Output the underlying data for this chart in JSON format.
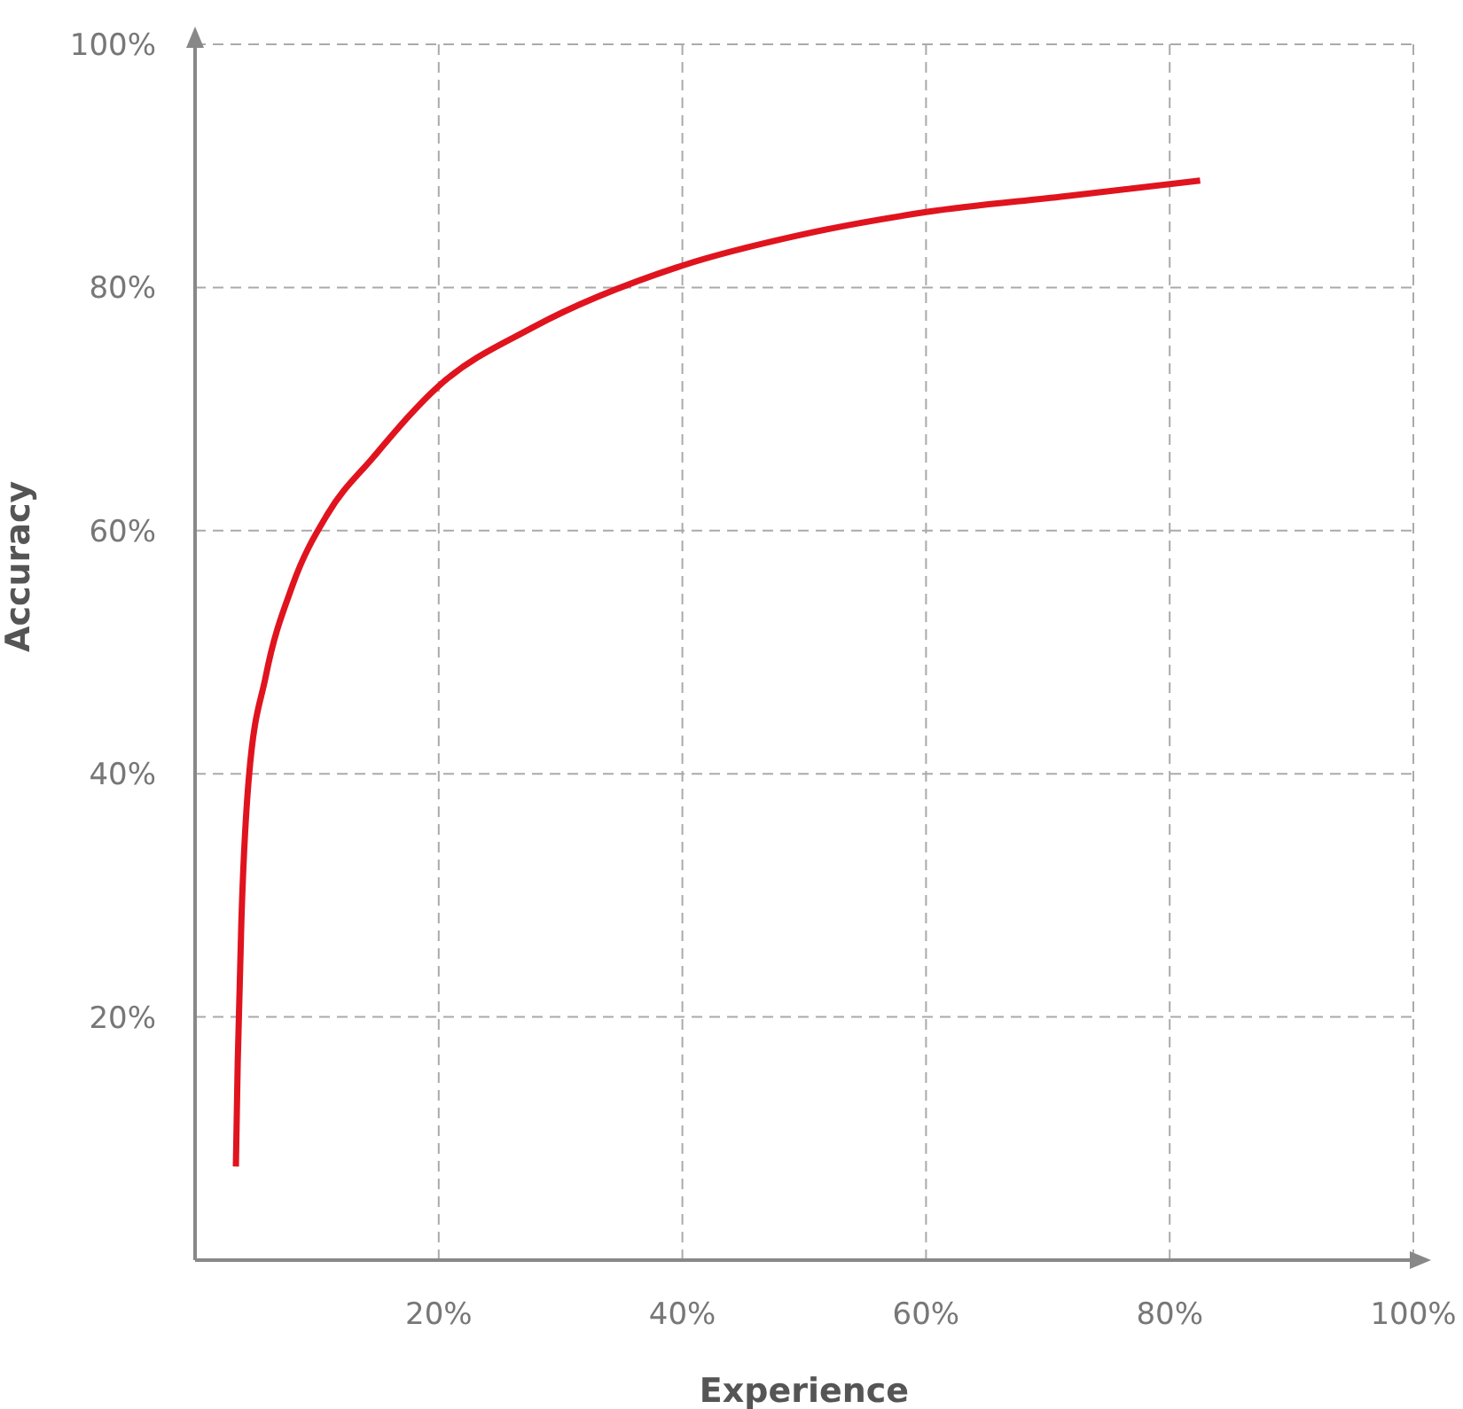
{
  "chart_data": {
    "type": "line",
    "xlabel": "Experience",
    "ylabel": "Accuracy",
    "x": [
      3.35,
      3.5,
      3.8,
      4.4,
      5.8,
      8,
      10.9,
      14.6,
      20,
      27.7,
      40,
      49.6,
      60,
      71.4,
      82.5
    ],
    "series": [
      {
        "color": "#e0141e",
        "values": [
          7.7,
          16.2,
          27.8,
          39.5,
          48,
          55.5,
          61.4,
          66,
          71.9,
          76.7,
          81.8,
          84.3,
          86.2,
          87.5,
          88.8
        ]
      }
    ],
    "xlim": [
      0,
      100
    ],
    "ylim": [
      0,
      100
    ],
    "xticks": [
      {
        "value": 0,
        "label": null
      },
      {
        "value": 20,
        "label": "20%"
      },
      {
        "value": 40,
        "label": "40%"
      },
      {
        "value": 60,
        "label": "60%"
      },
      {
        "value": 80,
        "label": "80%"
      },
      {
        "value": 100,
        "label": "100%"
      }
    ],
    "yticks": [
      {
        "value": 0,
        "label": null
      },
      {
        "value": 20,
        "label": "20%"
      },
      {
        "value": 40,
        "label": "40%"
      },
      {
        "value": 60,
        "label": "60%"
      },
      {
        "value": 80,
        "label": "80%"
      },
      {
        "value": 100,
        "label": "100%"
      }
    ],
    "grid": true,
    "legend": false,
    "marker": "none",
    "line_style": "solid"
  }
}
